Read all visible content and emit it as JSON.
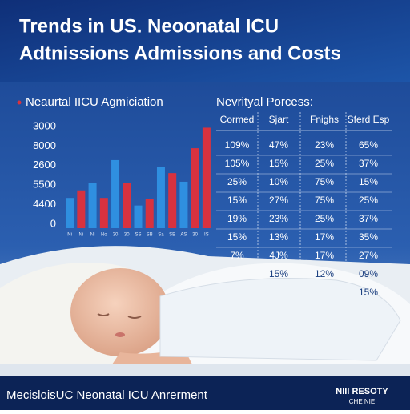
{
  "header": {
    "title_lines": [
      "Trends in US. Neoonatal ICU",
      "Adtnissions Admissions and Costs"
    ]
  },
  "chart_data": {
    "type": "bar",
    "title": "Neaurtal IICU Agmiciation",
    "y_axis_labels": [
      "3000",
      "8000",
      "2600",
      "5500",
      "4400",
      "0"
    ],
    "categories": [
      "Ni",
      "Ni",
      "Ni",
      "No",
      "30",
      "30",
      "SS",
      "SB",
      "Sa",
      "SB",
      "AS",
      "30",
      "IS"
    ],
    "ylim": [
      0,
      100
    ],
    "series": [
      {
        "color": "#2f8fe0",
        "values": [
          28,
          null,
          42,
          null,
          63,
          null,
          21,
          null,
          57,
          null,
          43,
          null,
          63
        ]
      },
      {
        "color": "#d8323f",
        "values": [
          null,
          35,
          null,
          28,
          null,
          42,
          null,
          27,
          null,
          51,
          null,
          74,
          93
        ]
      }
    ]
  },
  "table": {
    "title": "Nevrityal Porcess:",
    "columns": [
      "Cormed",
      "Sjart",
      "Fnighs",
      "Sferd Esp"
    ],
    "rows": [
      [
        "109%",
        "47%",
        "23%",
        "65%"
      ],
      [
        "105%",
        "15%",
        "25%",
        "37%"
      ],
      [
        "25%",
        "10%",
        "75%",
        "15%"
      ],
      [
        "15%",
        "27%",
        "75%",
        "25%"
      ],
      [
        "19%",
        "23%",
        "25%",
        "37%"
      ],
      [
        "15%",
        "13%",
        "17%",
        "35%"
      ],
      [
        "7%",
        "4J%",
        "17%",
        "27%"
      ],
      [
        null,
        "15%",
        "12%",
        "09%"
      ],
      [
        null,
        null,
        null,
        "15%"
      ]
    ]
  },
  "footer": {
    "text": "MecisloisUC Neonatal ICU Anrerment",
    "logo_lines": [
      "NIII RESOTY",
      "CHE NIE"
    ]
  }
}
